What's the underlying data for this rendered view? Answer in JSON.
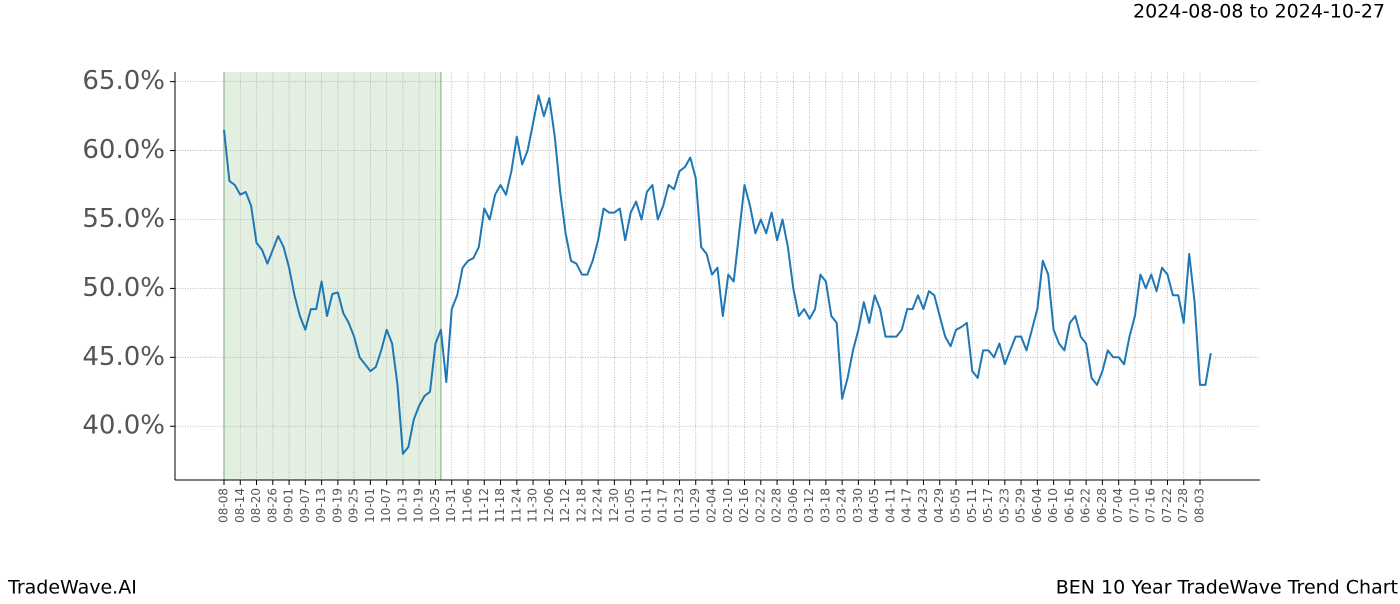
{
  "chart_data": {
    "type": "line",
    "title": "BEN 10 Year TradeWave Trend Chart",
    "subtitle": "2024-08-08 to 2024-10-27",
    "brand": "TradeWave.AI",
    "categories": [
      "08-08",
      null,
      null,
      "08-14",
      null,
      null,
      "08-20",
      null,
      null,
      "08-26",
      null,
      null,
      "09-01",
      null,
      null,
      "09-07",
      null,
      null,
      "09-13",
      null,
      null,
      "09-19",
      null,
      null,
      "09-25",
      null,
      null,
      "10-01",
      null,
      null,
      "10-07",
      null,
      null,
      "10-13",
      null,
      null,
      "10-19",
      null,
      null,
      "10-25",
      null,
      null,
      "10-31",
      null,
      null,
      "11-06",
      null,
      null,
      "11-12",
      null,
      null,
      "11-18",
      null,
      null,
      "11-24",
      null,
      null,
      "11-30",
      null,
      null,
      "12-06",
      null,
      null,
      "12-12",
      null,
      null,
      "12-18",
      null,
      null,
      "12-24",
      null,
      null,
      "12-30",
      null,
      null,
      "01-05",
      null,
      null,
      "01-11",
      null,
      null,
      "01-17",
      null,
      null,
      "01-23",
      null,
      null,
      "01-29",
      null,
      null,
      "02-04",
      null,
      null,
      "02-10",
      null,
      null,
      "02-16",
      null,
      null,
      "02-22",
      null,
      null,
      "02-28",
      null,
      null,
      "03-06",
      null,
      null,
      "03-12",
      null,
      null,
      "03-18",
      null,
      null,
      "03-24",
      null,
      null,
      "03-30",
      null,
      null,
      "04-05",
      null,
      null,
      "04-11",
      null,
      null,
      "04-17",
      null,
      null,
      "04-23",
      null,
      null,
      "04-29",
      null,
      null,
      "05-05",
      null,
      null,
      "05-11",
      null,
      null,
      "05-17",
      null,
      null,
      "05-23",
      null,
      null,
      "05-29",
      null,
      null,
      "06-04",
      null,
      null,
      "06-10",
      null,
      null,
      "06-16",
      null,
      null,
      "06-22",
      null,
      null,
      "06-28",
      null,
      null,
      "07-04",
      null,
      null,
      "07-10",
      null,
      null,
      "07-16",
      null,
      null,
      "07-22",
      null,
      null,
      "07-28",
      null,
      null,
      "08-03",
      null,
      null
    ],
    "series": [
      {
        "color": "#1f77b4",
        "values": [
          61.5,
          57.8,
          57.5,
          56.8,
          57,
          56,
          53.3,
          52.8,
          51.8,
          52.8,
          53.8,
          53,
          51.5,
          49.5,
          48,
          47,
          48.5,
          48.5,
          50.5,
          48,
          49.6,
          49.7,
          48.2,
          47.5,
          46.5,
          45,
          44.5,
          44,
          44.3,
          45.5,
          47,
          46,
          43,
          38,
          38.5,
          40.5,
          41.5,
          42.2,
          42.5,
          46,
          47,
          43.2,
          48.5,
          49.5,
          51.5,
          52,
          52.2,
          53,
          55.8,
          55,
          56.8,
          57.5,
          56.8,
          58.5,
          61,
          59,
          60,
          62,
          64,
          62.5,
          63.8,
          61,
          57,
          54,
          52,
          51.8,
          51,
          51,
          52,
          53.5,
          55.8,
          55.5,
          55.5,
          55.8,
          53.5,
          55.5,
          56.3,
          55,
          57,
          57.5,
          55,
          56,
          57.5,
          57.2,
          58.5,
          58.8,
          59.5,
          58,
          53,
          52.5,
          51,
          51.5,
          48,
          51,
          50.5,
          54,
          57.5,
          56,
          54,
          55,
          54,
          55.5,
          53.5,
          55,
          53,
          50,
          48,
          48.5,
          47.8,
          48.5,
          51,
          50.5,
          48,
          47.5,
          42,
          43.5,
          45.5,
          47,
          49,
          47.5,
          49.5,
          48.5,
          46.5,
          46.5,
          46.5,
          47,
          48.5,
          48.5,
          49.5,
          48.5,
          49.8,
          49.5,
          48,
          46.5,
          45.8,
          47,
          47.2,
          47.5,
          44,
          43.5,
          45.5,
          45.5,
          45,
          46,
          44.5,
          45.5,
          46.5,
          46.5,
          45.5,
          47,
          48.5,
          52,
          51,
          47,
          46,
          45.5,
          47.5,
          48,
          46.5,
          46,
          43.5,
          43,
          44,
          45.5,
          45,
          45,
          44.5,
          46.5,
          48,
          51,
          50,
          51,
          49.8,
          51.5,
          51,
          49.5,
          49.5,
          47.5,
          52.5,
          49,
          43,
          43,
          45.3
        ]
      }
    ],
    "ylim": [
      36.1,
      65.7
    ],
    "yticks": [
      {
        "value": 40,
        "label": "40.0%"
      },
      {
        "value": 45,
        "label": "45.0%"
      },
      {
        "value": 50,
        "label": "50.0%"
      },
      {
        "value": 55,
        "label": "55.0%"
      },
      {
        "value": 60,
        "label": "60.0%"
      },
      {
        "value": 65,
        "label": "65.0%"
      }
    ],
    "grid": true,
    "highlight": {
      "start": 0,
      "end": 40,
      "color": "#e3f0e1"
    }
  }
}
